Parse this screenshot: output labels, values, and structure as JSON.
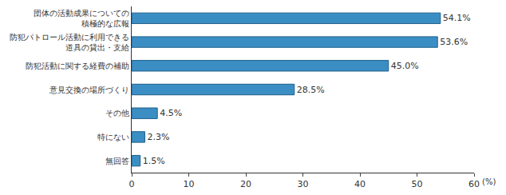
{
  "chart_data": {
    "type": "bar",
    "orientation": "horizontal",
    "categories": [
      "団体の活動成果についての\n積極的な広報",
      "防犯パトロール活動に利用できる\n道具の貸出・支給",
      "防犯活動に関する経費の補助",
      "意見交換の場所づくり",
      "その他",
      "特にない",
      "無回答"
    ],
    "values": [
      54.1,
      53.6,
      45.0,
      28.5,
      4.5,
      2.3,
      1.5
    ],
    "value_labels": [
      "54.1%",
      "53.6%",
      "45.0%",
      "28.5%",
      "4.5%",
      "2.3%",
      "1.5%"
    ],
    "data_labels": true,
    "color": "#3b8ec4",
    "x_label": "(%)",
    "xlim": [
      0,
      60
    ],
    "xticks": [
      0,
      10,
      20,
      30,
      40,
      50,
      60
    ],
    "grid": false
  }
}
